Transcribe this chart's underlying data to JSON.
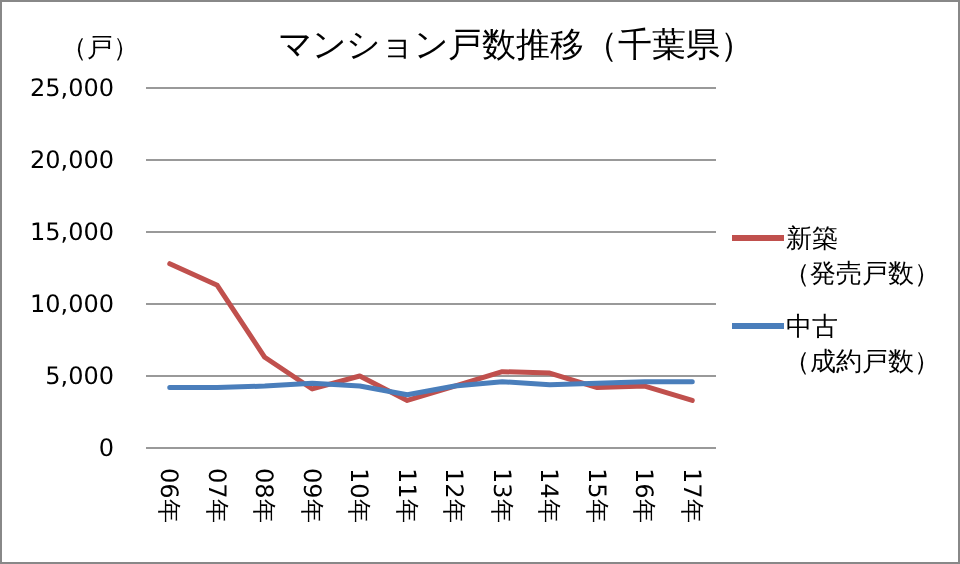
{
  "chart_data": {
    "type": "line",
    "title": "マンション戸数推移（千葉県）",
    "ylabel": "（戸）",
    "categories": [
      "06年",
      "07年",
      "08年",
      "09年",
      "10年",
      "11年",
      "12年",
      "13年",
      "14年",
      "15年",
      "16年",
      "17年"
    ],
    "series": [
      {
        "name": "新築（発売戸数）",
        "color": "#c0504d",
        "values": [
          12800,
          11300,
          6300,
          4100,
          5000,
          3300,
          4300,
          5300,
          5200,
          4200,
          4300,
          3300
        ]
      },
      {
        "name": "中古（成約戸数）",
        "color": "#4a7ebb",
        "values": [
          4200,
          4200,
          4300,
          4500,
          4300,
          3700,
          4300,
          4600,
          4400,
          4500,
          4600,
          4600
        ]
      }
    ],
    "ylim": [
      0,
      25000
    ],
    "yticks": [
      {
        "value": 0,
        "label": "0"
      },
      {
        "value": 5000,
        "label": "5,000"
      },
      {
        "value": 10000,
        "label": "10,000"
      },
      {
        "value": 15000,
        "label": "15,000"
      },
      {
        "value": 20000,
        "label": "20,000"
      },
      {
        "value": 25000,
        "label": "25,000"
      }
    ],
    "grid": "y",
    "legend": "right",
    "marker": "none",
    "line_style": "solid"
  }
}
